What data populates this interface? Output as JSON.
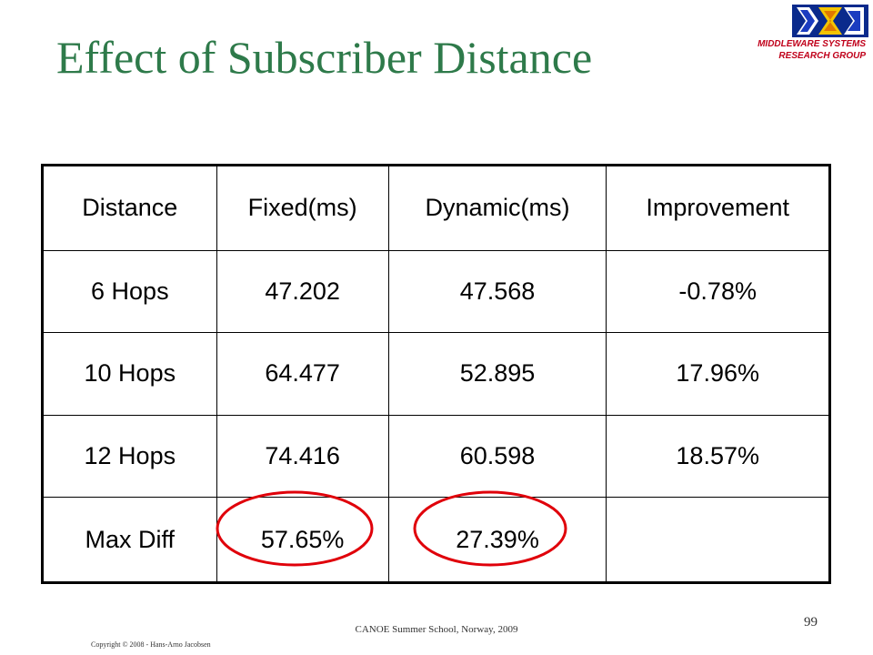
{
  "slide": {
    "title": "Effect of Subscriber Distance",
    "logo": {
      "line1": "MIDDLEWARE SYSTEMS",
      "line2": "RESEARCH GROUP",
      "icon": "msrg-logo"
    },
    "table": {
      "headers": [
        "Distance",
        "Fixed(ms)",
        "Dynamic(ms)",
        "Improvement"
      ],
      "rows": [
        [
          "6 Hops",
          "47.202",
          "47.568",
          "-0.78%"
        ],
        [
          "10 Hops",
          "64.477",
          "52.895",
          "17.96%"
        ],
        [
          "12 Hops",
          "74.416",
          "60.598",
          "18.57%"
        ],
        [
          "Max Diff",
          "57.65%",
          "27.39%",
          ""
        ]
      ],
      "highlight_color": "#e0000a"
    },
    "footer": {
      "center": "CANOE Summer School, Norway, 2009",
      "page_number": "99",
      "copyright": "Copyright © 2008 - Hans-Arno Jacobsen"
    }
  }
}
